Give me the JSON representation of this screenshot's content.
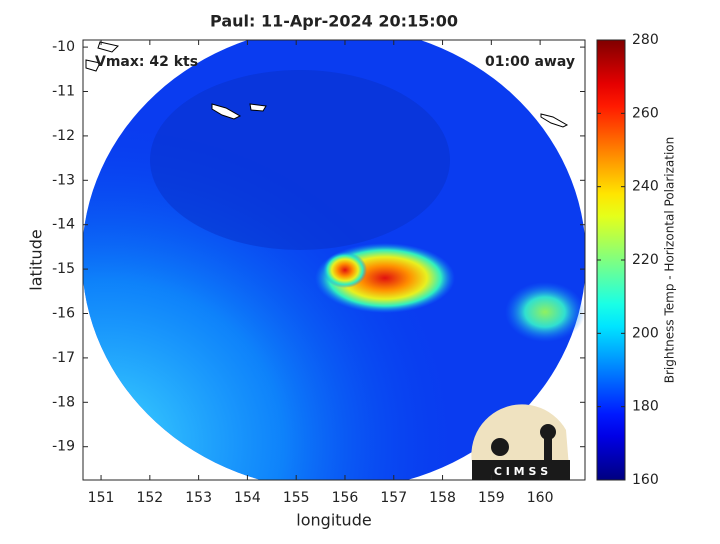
{
  "chart_data": {
    "type": "map",
    "title": "Paul: 11-Apr-2024 20:15:00",
    "annotations": [
      "Vmax: 42 kts",
      "01:00 away"
    ],
    "xlabel": "longitude",
    "ylabel": "latitude",
    "xlim": [
      150.63,
      160.92
    ],
    "xticks": [
      151,
      152,
      153,
      154,
      155,
      156,
      157,
      158,
      159,
      160
    ],
    "ylim": [
      -19.75,
      -9.84
    ],
    "yticks": [
      -10,
      -11,
      -12,
      -13,
      -14,
      -15,
      -16,
      -17,
      -18,
      -19
    ],
    "colorbar": {
      "label": "Brightness Temp - Horizontal Polarization",
      "colormap": "jet",
      "lim": [
        160,
        280
      ],
      "ticks": [
        160,
        180,
        200,
        220,
        240,
        260,
        280
      ]
    },
    "logo_text": "C I M S S"
  }
}
